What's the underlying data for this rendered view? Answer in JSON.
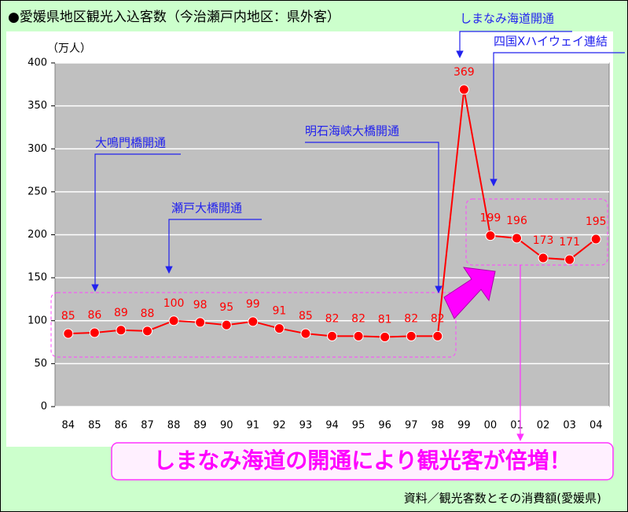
{
  "chart_data": {
    "type": "line",
    "title": "●愛媛県地区観光入込客数（今治瀬戸内地区：県外客）",
    "y_label": "（万人）",
    "categories": [
      "84",
      "85",
      "86",
      "87",
      "88",
      "89",
      "90",
      "91",
      "92",
      "93",
      "94",
      "95",
      "96",
      "97",
      "98",
      "99",
      "00",
      "01",
      "02",
      "03",
      "04"
    ],
    "values": [
      85,
      86,
      89,
      88,
      100,
      98,
      95,
      99,
      91,
      85,
      82,
      82,
      81,
      82,
      82,
      369,
      199,
      196,
      173,
      171,
      195
    ],
    "color": "#ff0000",
    "ylim": [
      0,
      400
    ],
    "yticks": [
      0,
      50,
      100,
      150,
      200,
      250,
      300,
      350,
      400
    ],
    "grid": true,
    "annotations": [
      "しまなみ海道開通",
      "四国Xハイウェイ連結",
      "明石海峡大橋開通",
      "大鳴門橋開通",
      "瀬戸大橋開通"
    ],
    "callout": "しまなみ海道の開通により観光客が倍増！",
    "source": "資料／観光客数とその消費額(愛媛県)"
  }
}
